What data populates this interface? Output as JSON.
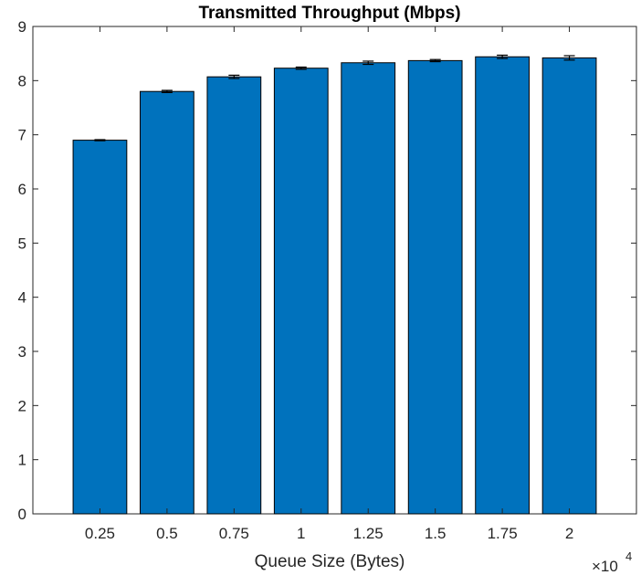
{
  "chart_data": {
    "type": "bar",
    "title": "Transmitted Throughput (Mbps)",
    "xlabel": "Queue Size (Bytes)",
    "ylabel": "",
    "x_multiplier": {
      "base": "×10",
      "exponent": "4"
    },
    "categories": [
      "0.25",
      "0.5",
      "0.75",
      "1",
      "1.25",
      "1.5",
      "1.75",
      "2"
    ],
    "values": [
      6.9,
      7.8,
      8.07,
      8.23,
      8.33,
      8.37,
      8.44,
      8.42
    ],
    "error": [
      0.01,
      0.02,
      0.03,
      0.02,
      0.03,
      0.02,
      0.03,
      0.04
    ],
    "ylim": [
      0,
      9
    ],
    "yticks": [
      "0",
      "1",
      "2",
      "3",
      "4",
      "5",
      "6",
      "7",
      "8",
      "9"
    ],
    "grid": false,
    "bar_color": "#0072BD",
    "edge_color": "#000000"
  }
}
